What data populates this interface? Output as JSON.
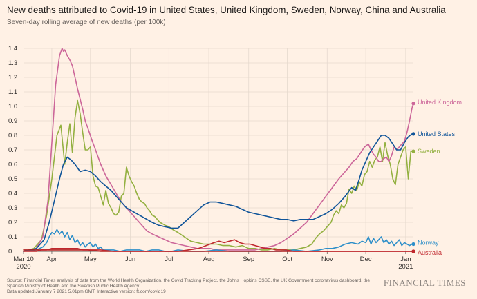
{
  "chart_data": {
    "type": "line",
    "title": "New deaths attributed to Covid-19 in United States, United Kingdom, Sweden, Norway, China and Australia",
    "subtitle": "Seven-day rolling average of new deaths (per 100k)",
    "xlabel": "",
    "ylabel": "",
    "ylim": [
      0,
      1.4
    ],
    "yticks": [
      "0",
      "0.1",
      "0.2",
      "0.3",
      "0.4",
      "0.5",
      "0.6",
      "0.7",
      "0.8",
      "0.9",
      "1.0",
      "1.1",
      "1.2",
      "1.3",
      "1.4"
    ],
    "xlim": [
      0,
      303
    ],
    "xticks": [
      {
        "day": 0,
        "label": "Mar 10",
        "sublabel": "2020"
      },
      {
        "day": 22,
        "label": "Apr",
        "sublabel": ""
      },
      {
        "day": 52,
        "label": "May",
        "sublabel": ""
      },
      {
        "day": 83,
        "label": "Jun",
        "sublabel": ""
      },
      {
        "day": 113,
        "label": "Jul",
        "sublabel": ""
      },
      {
        "day": 144,
        "label": "Aug",
        "sublabel": ""
      },
      {
        "day": 175,
        "label": "Sep",
        "sublabel": ""
      },
      {
        "day": 205,
        "label": "Oct",
        "sublabel": ""
      },
      {
        "day": 236,
        "label": "Nov",
        "sublabel": ""
      },
      {
        "day": 266,
        "label": "Dec",
        "sublabel": ""
      },
      {
        "day": 297,
        "label": "Jan",
        "sublabel": "2021"
      }
    ],
    "grid": true,
    "series": [
      {
        "name": "Sweden",
        "label": "Sweden",
        "color": "#93b040",
        "x": [
          0,
          8,
          14,
          18,
          22,
          26,
          29,
          32,
          34,
          36,
          38,
          40,
          42,
          44,
          46,
          48,
          50,
          52,
          54,
          56,
          58,
          60,
          62,
          64,
          66,
          68,
          70,
          72,
          74,
          76,
          78,
          80,
          82,
          84,
          86,
          88,
          90,
          92,
          94,
          96,
          98,
          100,
          102,
          104,
          106,
          108,
          110,
          113,
          116,
          120,
          125,
          130,
          135,
          140,
          145,
          150,
          155,
          160,
          165,
          170,
          175,
          180,
          185,
          190,
          195,
          200,
          205,
          210,
          215,
          220,
          224,
          227,
          230,
          233,
          236,
          239,
          241,
          243,
          245,
          247,
          249,
          251,
          253,
          255,
          257,
          259,
          261,
          263,
          265,
          267,
          269,
          271,
          273,
          275,
          277,
          279,
          281,
          283,
          285,
          287,
          289,
          291,
          293,
          295,
          297,
          299,
          301,
          303
        ],
        "y": [
          0,
          0.02,
          0.08,
          0.25,
          0.5,
          0.8,
          0.87,
          0.6,
          0.75,
          0.88,
          0.68,
          0.92,
          1.04,
          0.95,
          0.82,
          0.7,
          0.7,
          0.72,
          0.52,
          0.45,
          0.44,
          0.38,
          0.32,
          0.42,
          0.33,
          0.3,
          0.26,
          0.25,
          0.27,
          0.38,
          0.4,
          0.58,
          0.52,
          0.48,
          0.45,
          0.4,
          0.36,
          0.34,
          0.33,
          0.3,
          0.28,
          0.25,
          0.24,
          0.22,
          0.2,
          0.19,
          0.18,
          0.17,
          0.15,
          0.13,
          0.1,
          0.07,
          0.06,
          0.05,
          0.05,
          0.05,
          0.04,
          0.04,
          0.03,
          0.04,
          0.02,
          0.02,
          0.01,
          0.01,
          0.02,
          0.01,
          0.01,
          0.01,
          0.02,
          0.03,
          0.05,
          0.09,
          0.12,
          0.14,
          0.17,
          0.2,
          0.25,
          0.28,
          0.26,
          0.32,
          0.3,
          0.33,
          0.43,
          0.4,
          0.45,
          0.42,
          0.48,
          0.45,
          0.53,
          0.55,
          0.62,
          0.58,
          0.63,
          0.65,
          0.72,
          0.62,
          0.75,
          0.66,
          0.6,
          0.5,
          0.46,
          0.6,
          0.65,
          0.7,
          0.72,
          0.5,
          0.69,
          0.69
        ]
      },
      {
        "name": "United Kingdom",
        "label": "United Kingdom",
        "color": "#cc6699",
        "x": [
          0,
          10,
          15,
          19,
          22,
          25,
          28,
          30,
          31,
          32,
          34,
          36,
          38,
          40,
          42,
          44,
          46,
          48,
          50,
          53,
          56,
          60,
          64,
          68,
          72,
          76,
          80,
          84,
          88,
          92,
          96,
          100,
          105,
          110,
          115,
          120,
          125,
          130,
          135,
          140,
          145,
          150,
          155,
          160,
          165,
          170,
          175,
          180,
          185,
          190,
          195,
          200,
          205,
          210,
          215,
          220,
          225,
          230,
          235,
          240,
          245,
          250,
          253,
          256,
          259,
          262,
          265,
          268,
          270,
          272,
          274,
          276,
          278,
          280,
          282,
          284,
          286,
          288,
          290,
          292,
          294,
          296,
          298,
          300,
          302,
          303
        ],
        "y": [
          0,
          0.02,
          0.1,
          0.35,
          0.75,
          1.15,
          1.35,
          1.4,
          1.38,
          1.39,
          1.35,
          1.32,
          1.28,
          1.2,
          1.12,
          1.05,
          0.98,
          0.9,
          0.85,
          0.77,
          0.7,
          0.6,
          0.52,
          0.46,
          0.4,
          0.34,
          0.3,
          0.26,
          0.22,
          0.18,
          0.14,
          0.12,
          0.1,
          0.08,
          0.06,
          0.05,
          0.04,
          0.03,
          0.02,
          0.02,
          0.02,
          0.01,
          0.01,
          0.01,
          0.01,
          0.01,
          0.01,
          0.01,
          0.02,
          0.03,
          0.04,
          0.06,
          0.09,
          0.12,
          0.16,
          0.2,
          0.26,
          0.32,
          0.38,
          0.44,
          0.5,
          0.55,
          0.58,
          0.62,
          0.64,
          0.68,
          0.72,
          0.74,
          0.7,
          0.67,
          0.65,
          0.62,
          0.62,
          0.64,
          0.65,
          0.62,
          0.66,
          0.72,
          0.7,
          0.72,
          0.74,
          0.76,
          0.82,
          0.9,
          0.99,
          1.02
        ]
      },
      {
        "name": "United States",
        "label": "United States",
        "color": "#0f5499",
        "x": [
          0,
          10,
          16,
          20,
          24,
          28,
          31,
          34,
          37,
          40,
          44,
          48,
          52,
          56,
          60,
          64,
          68,
          72,
          76,
          80,
          84,
          88,
          92,
          96,
          100,
          105,
          110,
          115,
          120,
          125,
          130,
          135,
          140,
          145,
          150,
          155,
          160,
          165,
          170,
          175,
          180,
          185,
          190,
          195,
          200,
          205,
          210,
          215,
          220,
          225,
          230,
          235,
          240,
          245,
          250,
          255,
          258,
          261,
          263,
          266,
          269,
          272,
          275,
          278,
          281,
          284,
          287,
          290,
          293,
          296,
          299,
          302,
          303
        ],
        "y": [
          0,
          0.02,
          0.08,
          0.2,
          0.35,
          0.5,
          0.6,
          0.65,
          0.63,
          0.6,
          0.55,
          0.56,
          0.55,
          0.52,
          0.48,
          0.45,
          0.42,
          0.38,
          0.34,
          0.3,
          0.28,
          0.26,
          0.24,
          0.22,
          0.2,
          0.18,
          0.17,
          0.16,
          0.16,
          0.2,
          0.24,
          0.28,
          0.32,
          0.34,
          0.34,
          0.33,
          0.32,
          0.31,
          0.29,
          0.27,
          0.26,
          0.25,
          0.24,
          0.23,
          0.22,
          0.22,
          0.21,
          0.22,
          0.22,
          0.22,
          0.24,
          0.26,
          0.29,
          0.33,
          0.38,
          0.44,
          0.42,
          0.5,
          0.56,
          0.62,
          0.68,
          0.72,
          0.76,
          0.8,
          0.8,
          0.78,
          0.74,
          0.7,
          0.7,
          0.75,
          0.79,
          0.81,
          0.81
        ]
      },
      {
        "name": "Norway",
        "label": "Norway",
        "color": "#2e8fc9",
        "x": [
          0,
          10,
          15,
          18,
          20,
          22,
          24,
          26,
          28,
          30,
          32,
          34,
          36,
          38,
          40,
          42,
          44,
          46,
          48,
          50,
          52,
          54,
          56,
          58,
          60,
          62,
          66,
          70,
          75,
          80,
          85,
          90,
          95,
          100,
          105,
          110,
          115,
          120,
          130,
          140,
          150,
          160,
          170,
          180,
          190,
          200,
          210,
          220,
          230,
          235,
          240,
          245,
          250,
          255,
          260,
          263,
          266,
          268,
          270,
          272,
          274,
          276,
          278,
          280,
          282,
          284,
          286,
          288,
          290,
          292,
          294,
          296,
          298,
          300,
          302,
          303
        ],
        "y": [
          0,
          0.01,
          0.03,
          0.06,
          0.1,
          0.13,
          0.12,
          0.15,
          0.12,
          0.14,
          0.1,
          0.13,
          0.08,
          0.11,
          0.06,
          0.08,
          0.04,
          0.06,
          0.03,
          0.05,
          0.06,
          0.03,
          0.05,
          0.02,
          0.03,
          0.01,
          0.01,
          0.01,
          0.0,
          0.01,
          0.01,
          0.01,
          0.0,
          0.01,
          0.01,
          0.0,
          0.0,
          0.01,
          0.0,
          0.0,
          0.01,
          0.0,
          0.0,
          0.0,
          0.0,
          0.0,
          0.01,
          0.0,
          0.01,
          0.02,
          0.02,
          0.03,
          0.05,
          0.06,
          0.05,
          0.07,
          0.06,
          0.1,
          0.05,
          0.09,
          0.06,
          0.08,
          0.1,
          0.06,
          0.08,
          0.05,
          0.07,
          0.04,
          0.06,
          0.08,
          0.04,
          0.06,
          0.05,
          0.04,
          0.05,
          0.05
        ]
      },
      {
        "name": "China",
        "label": "",
        "color": "#b22222",
        "x": [
          0,
          10,
          20,
          30,
          40,
          50,
          60,
          80,
          100,
          120,
          140,
          160,
          180,
          200,
          220,
          240,
          260,
          280,
          303
        ],
        "y": [
          0.01,
          0.01,
          0.01,
          0.01,
          0.01,
          0.01,
          0.0,
          0.0,
          0.0,
          0.0,
          0.0,
          0.0,
          0.0,
          0.0,
          0.0,
          0.0,
          0.0,
          0.0,
          0.0
        ]
      },
      {
        "name": "Australia",
        "label": "Australia",
        "color": "#c0272d",
        "x": [
          0,
          10,
          14,
          18,
          22,
          26,
          30,
          34,
          38,
          42,
          46,
          50,
          54,
          60,
          70,
          80,
          90,
          100,
          110,
          120,
          128,
          136,
          142,
          148,
          152,
          156,
          160,
          164,
          168,
          172,
          176,
          180,
          184,
          188,
          192,
          196,
          200,
          204,
          210,
          220,
          240,
          260,
          280,
          303
        ],
        "y": [
          0,
          0.0,
          0.01,
          0.01,
          0.02,
          0.02,
          0.02,
          0.02,
          0.02,
          0.02,
          0.01,
          0.01,
          0.01,
          0.01,
          0.0,
          0.0,
          0.0,
          0.0,
          0.0,
          0.0,
          0.01,
          0.02,
          0.04,
          0.06,
          0.07,
          0.06,
          0.07,
          0.08,
          0.06,
          0.05,
          0.05,
          0.04,
          0.03,
          0.02,
          0.02,
          0.01,
          0.01,
          0.01,
          0.0,
          0.0,
          0.0,
          0.0,
          0.0,
          0.0
        ]
      }
    ]
  },
  "footer": {
    "source": "Source: Financial Times analysis of data from the World Health Organization, the Covid Tracking Project, the Johns Hopkins CSSE, the UK Government coronavirus dashboard, the Spanish Ministry of Health and the Swedish Public Health Agency.",
    "updated": "Data updated January 7 2021 5.01pm GMT. Interactive version: ft.com/covid19",
    "brand": "FINANCIAL TIMES"
  }
}
